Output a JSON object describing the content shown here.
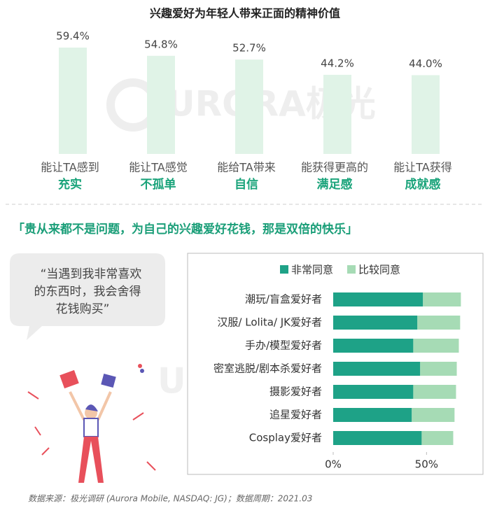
{
  "chart_data": [
    {
      "type": "bar",
      "title": "兴趣爱好为年轻人带来正面的精神价值",
      "categories": [
        [
          "能让TA感到",
          "充实"
        ],
        [
          "能让TA感觉",
          "不孤单"
        ],
        [
          "能给TA带来",
          "自信"
        ],
        [
          "能获得更高的",
          "满足感"
        ],
        [
          "能让TA获得",
          "成就感"
        ]
      ],
      "values": [
        59.4,
        54.8,
        52.7,
        44.2,
        44.0
      ],
      "value_labels": [
        "59.4%",
        "54.8%",
        "52.7%",
        "44.2%",
        "44.0%"
      ],
      "color": "#e0f3e7"
    },
    {
      "type": "stacked_barh",
      "categories": [
        "潮玩/盲盒爱好者",
        "汉服/ Lolita/ JK爱好者",
        "手办/模型爱好者",
        "密室逃脱/剧本杀爱好者",
        "摄影爱好者",
        "追星爱好者",
        "Cosplay爱好者"
      ],
      "series": [
        {
          "name": "非常同意",
          "color": "#1ea287",
          "values": [
            48.1,
            45.1,
            42.9,
            46.6,
            42.9,
            42.1,
            47.4
          ]
        },
        {
          "name": "比较同意",
          "color": "#a6dbb5",
          "values": [
            20.3,
            22.9,
            24.4,
            19.6,
            22.9,
            22.9,
            16.9
          ]
        }
      ],
      "xlim": [
        0,
        75
      ],
      "xticks": [
        {
          "value": 0,
          "label": "0%"
        },
        {
          "value": 50,
          "label": "50%"
        }
      ],
      "legend": "top"
    }
  ],
  "section_heading": "「贵从来都不是问题，为自己的兴趣爱好花钱，那是双倍的快乐」",
  "quote": [
    "“当遇到我非常喜欢",
    "的东西时，我会舍得",
    "花钱购买”"
  ],
  "watermark": "URORA极光",
  "source": "数据来源：极光调研 (Aurora Mobile, NASDAQ: JG)；数据周期：2021.03"
}
